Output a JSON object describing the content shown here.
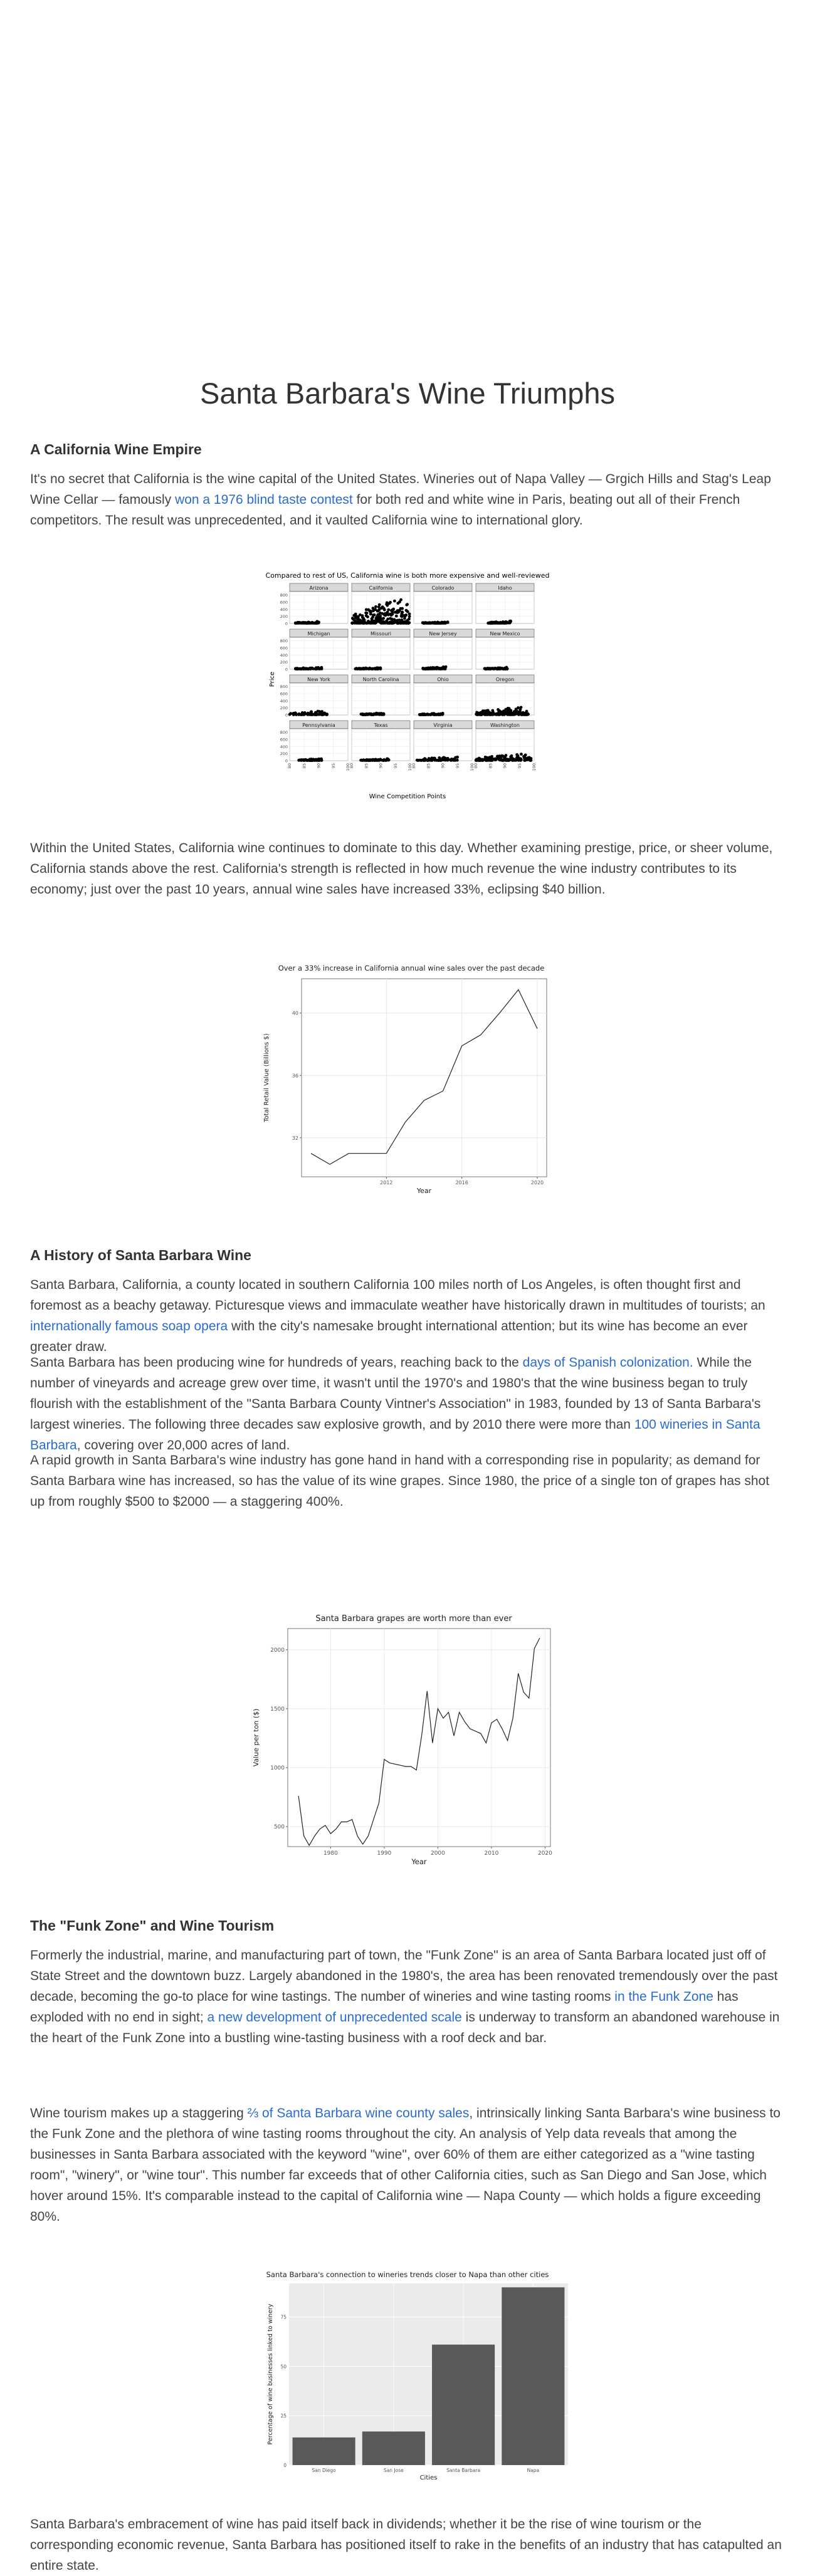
{
  "article": {
    "title": "Santa Barbara's Wine Triumphs",
    "sections": {
      "s1": "A California Wine Empire",
      "s2": "A History of Santa Barbara Wine",
      "s3": "The \"Funk Zone\" and Wine Tourism"
    },
    "p1": {
      "a": "It's no secret that California is the wine capital of the United States. Wineries out of Napa Valley — Grgich Hills and Stag's Leap Wine Cellar — famously ",
      "link": "won a 1976 blind taste contest",
      "b": " for both red and white wine in Paris, beating out all of their French competitors. The result was unprecedented, and it vaulted California wine to international glory."
    },
    "p2": "Within the United States, California wine continues to dominate to this day. Whether examining prestige, price, or sheer volume, California stands above the rest. California's strength is reflected in how much revenue the wine industry contributes to its economy; just over the past 10 years, annual wine sales have increased 33%, eclipsing $40 billion.",
    "p3": {
      "a": "Santa Barbara, California, a county located in southern California 100 miles north of Los Angeles, is often thought first and foremost as a beachy getaway. Picturesque views and immaculate weather have historically drawn in multitudes of tourists; an ",
      "link": "internationally famous soap opera",
      "b": " with the city's namesake brought international attention; but its wine has become an ever greater draw."
    },
    "p4": {
      "a": "Santa Barbara has been producing wine for hundreds of years, reaching back to the ",
      "link1": "days of Spanish colonization.",
      "b": " While the number of vineyards and acreage grew over time, it wasn't until the 1970's and 1980's that the wine business began to truly flourish with the establishment of the \"Santa Barbara County Vintner's Association\" in 1983, founded by 13 of Santa Barbara's largest wineries. The following three decades saw explosive growth, and by 2010 there were more than ",
      "link2": "100 wineries in Santa Barbara",
      "c": ", covering over 20,000 acres of land."
    },
    "p5": "A rapid growth in Santa Barbara's wine industry has gone hand in hand with a corresponding rise in popularity; as demand for Santa Barbara wine has increased, so has the value of its wine grapes. Since 1980, the price of a single ton of grapes has shot up from roughly $500 to $2000 — a staggering 400%.",
    "p6": {
      "a": "Formerly the industrial, marine, and manufacturing part of town, the \"Funk Zone\" is an area of Santa Barbara located just off of State Street and the downtown buzz. Largely abandoned in the 1980's, the area has been renovated tremendously over the past decade, becoming the go-to place for wine tastings. The number of wineries and wine tasting rooms ",
      "link1": "in the Funk Zone",
      "b": " has exploded with no end in sight; ",
      "link2": "a new development of unprecedented scale",
      "c": " is underway to transform an abandoned warehouse in the heart of the Funk Zone into a bustling wine-tasting business with a roof deck and bar."
    },
    "p7": {
      "a": "Wine tourism makes up a staggering ",
      "link": "⅔ of Santa Barbara wine county sales",
      "b": ", intrinsically linking Santa Barbara's wine business to the Funk Zone and the plethora of wine tasting rooms throughout the city. An analysis of Yelp data reveals that among the businesses in Santa Barbara associated with the keyword \"wine\", over 60% of them are either categorized as a \"wine tasting room\", \"winery\", or \"wine tour\". This number far exceeds that of other California cities, such as San Diego and San Jose, which hover around 15%. It's comparable instead to the capital of California wine — Napa County — which holds a figure exceeding 80%."
    },
    "p8": "Santa Barbara's embracement of wine has paid itself back in dividends; whether it be the rise of wine tourism or the corresponding economic revenue, Santa Barbara has positioned itself to rake in the benefits of an industry that has catapulted an entire state."
  },
  "chart_data": [
    {
      "type": "scatter",
      "title": "Compared to rest of US, California wine is both more expensive and well-reviewed",
      "xlabel": "Wine Competition Points",
      "ylabel": "Price",
      "xticks": [
        "80",
        "85",
        "90",
        "95",
        "100"
      ],
      "yticks": [
        "0",
        "200",
        "400",
        "600",
        "800"
      ],
      "xlim": [
        80,
        100
      ],
      "ylim": [
        0,
        900
      ],
      "facets": [
        "Arizona",
        "California",
        "Colorado",
        "Idaho",
        "Michigan",
        "Missouri",
        "New Jersey",
        "New Mexico",
        "New York",
        "North Carolina",
        "Ohio",
        "Oregon",
        "Pennsylvania",
        "Texas",
        "Virginia",
        "Washington"
      ],
      "facet_ranges": [
        {
          "x": [
            82,
            90
          ],
          "y": [
            10,
            60
          ]
        },
        {
          "x": [
            80,
            100
          ],
          "y": [
            10,
            800
          ]
        },
        {
          "x": [
            83,
            92
          ],
          "y": [
            10,
            60
          ]
        },
        {
          "x": [
            84,
            92
          ],
          "y": [
            10,
            70
          ]
        },
        {
          "x": [
            82,
            91
          ],
          "y": [
            10,
            60
          ]
        },
        {
          "x": [
            81,
            90
          ],
          "y": [
            10,
            50
          ]
        },
        {
          "x": [
            83,
            91
          ],
          "y": [
            10,
            70
          ]
        },
        {
          "x": [
            83,
            91
          ],
          "y": [
            10,
            60
          ]
        },
        {
          "x": [
            80,
            93
          ],
          "y": [
            10,
            130
          ]
        },
        {
          "x": [
            83,
            91
          ],
          "y": [
            10,
            60
          ]
        },
        {
          "x": [
            82,
            90
          ],
          "y": [
            10,
            50
          ]
        },
        {
          "x": [
            80,
            98
          ],
          "y": [
            10,
            250
          ]
        },
        {
          "x": [
            83,
            91
          ],
          "y": [
            10,
            60
          ]
        },
        {
          "x": [
            83,
            93
          ],
          "y": [
            10,
            60
          ]
        },
        {
          "x": [
            81,
            95
          ],
          "y": [
            10,
            120
          ]
        },
        {
          "x": [
            80,
            99
          ],
          "y": [
            10,
            220
          ]
        }
      ],
      "grid": true
    },
    {
      "type": "line",
      "title": "Over a 33% increase in California annual wine sales over the past decade",
      "xlabel": "Year",
      "ylabel": "Total Retail Value (Billions $)",
      "xticks": [
        "2012",
        "2016",
        "2020"
      ],
      "yticks": [
        "32",
        "36",
        "40"
      ],
      "x": [
        2008,
        2009,
        2010,
        2011,
        2012,
        2013,
        2014,
        2015,
        2016,
        2017,
        2018,
        2019,
        2020
      ],
      "values": [
        31.0,
        30.3,
        31.0,
        31.0,
        31.0,
        33.0,
        34.4,
        35.0,
        37.9,
        38.6,
        40.0,
        41.5,
        39.0
      ],
      "xlim": [
        2007.5,
        2020.5
      ],
      "ylim": [
        29.5,
        42.2
      ],
      "grid": true
    },
    {
      "type": "line",
      "title": "Santa Barbara grapes are worth more than ever",
      "xlabel": "Year",
      "ylabel": "Value per ton ($)",
      "xticks": [
        "1980",
        "1990",
        "2000",
        "2010",
        "2020"
      ],
      "yticks": [
        "500",
        "1000",
        "1500",
        "2000"
      ],
      "x": [
        1974,
        1975,
        1976,
        1977,
        1978,
        1979,
        1980,
        1981,
        1982,
        1983,
        1984,
        1985,
        1986,
        1987,
        1988,
        1989,
        1990,
        1991,
        1992,
        1993,
        1994,
        1995,
        1996,
        1997,
        1998,
        1999,
        2000,
        2001,
        2002,
        2003,
        2004,
        2005,
        2006,
        2007,
        2008,
        2009,
        2010,
        2011,
        2012,
        2013,
        2014,
        2015,
        2016,
        2017,
        2018,
        2019
      ],
      "values": [
        760,
        420,
        340,
        420,
        480,
        510,
        440,
        480,
        540,
        540,
        560,
        420,
        350,
        420,
        560,
        700,
        1070,
        1040,
        1030,
        1020,
        1010,
        1010,
        980,
        1280,
        1650,
        1210,
        1500,
        1420,
        1470,
        1270,
        1470,
        1390,
        1330,
        1310,
        1290,
        1210,
        1380,
        1410,
        1330,
        1230,
        1420,
        1800,
        1640,
        1590,
        2010,
        2100
      ],
      "xlim": [
        1972,
        2021
      ],
      "ylim": [
        330,
        2180
      ],
      "grid": true
    },
    {
      "type": "bar",
      "title": "Santa Barbara's connection to wineries trends closer to Napa than other cities",
      "xlabel": "Cities",
      "ylabel": "Percentage of wine businesses linked to winery",
      "categories": [
        "San Diego",
        "San Jose",
        "Santa Barbara",
        "Napa"
      ],
      "values": [
        14,
        17,
        61,
        90
      ],
      "yticks": [
        "0",
        "25",
        "50",
        "75"
      ],
      "ylim": [
        0,
        92
      ],
      "grid": true
    }
  ]
}
